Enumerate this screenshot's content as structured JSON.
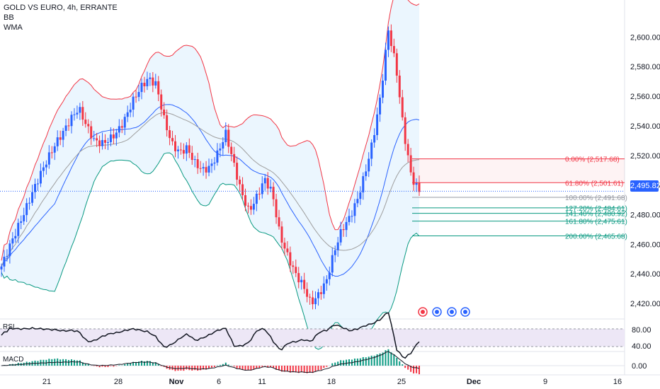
{
  "legend": {
    "title": "GOLD VS EURO, 4h, ERRANTE",
    "indicator1": "BB",
    "indicator2": "WMA"
  },
  "price_tag": "2,495.82",
  "panes": {
    "rsi": "RSI",
    "macd": "MACD"
  },
  "colors": {
    "up": "#2962ff",
    "down": "#f23645",
    "bb_upper": "#f23645",
    "bb_basis": "#2962ff",
    "bb_lower": "#089981",
    "bb_fill": "#e3f2fd",
    "wma": "#9e9e9e",
    "fib_high": "#f23645",
    "fib_mid": "#9598a1",
    "fib_ext": "#089981",
    "rsi_band": "#ede7f6"
  },
  "chart_data": {
    "type": "candlestick",
    "title": "GOLD VS EURO, 4h, ERRANTE",
    "ylim": [
      2410,
      2625
    ],
    "y_ticks": [
      "2,420.00",
      "2,440.00",
      "2,460.00",
      "2,480.00",
      "2,500.00",
      "2,520.00",
      "2,540.00",
      "2,560.00",
      "2,580.00",
      "2,600.00"
    ],
    "x_ticks": [
      "21",
      "28",
      "Nov",
      "6",
      "11",
      "18",
      "25",
      "Dec",
      "9",
      "16"
    ],
    "current_price": 2495.82,
    "fib_levels": [
      {
        "label": "0.00% (2,517.68)",
        "value": 2517.68,
        "group": "high"
      },
      {
        "label": "61.80% (2,501.61)",
        "value": 2501.61,
        "group": "high"
      },
      {
        "label": "100.00% (2,491.68)",
        "value": 2491.68,
        "group": "mid"
      },
      {
        "label": "127.20% (2,484.61)",
        "value": 2484.61,
        "group": "ext"
      },
      {
        "label": "141.40% (2,480.92)",
        "value": 2480.92,
        "group": "ext"
      },
      {
        "label": "161.80% (2,475.61)",
        "value": 2475.61,
        "group": "ext"
      },
      {
        "label": "200.00% (2,465.68)",
        "value": 2465.68,
        "group": "ext"
      }
    ],
    "price_path": [
      2445,
      2458,
      2470,
      2482,
      2495,
      2507,
      2518,
      2528,
      2536,
      2545,
      2552,
      2540,
      2530,
      2528,
      2531,
      2536,
      2545,
      2557,
      2566,
      2572,
      2568,
      2545,
      2528,
      2522,
      2525,
      2515,
      2510,
      2512,
      2522,
      2535,
      2515,
      2495,
      2482,
      2492,
      2504,
      2495,
      2466,
      2452,
      2440,
      2432,
      2420,
      2426,
      2435,
      2455,
      2470,
      2478,
      2490,
      2508,
      2530,
      2560,
      2605,
      2580,
      2536,
      2505,
      2496
    ],
    "rsi": {
      "ticks": [
        "80.00",
        "40.00"
      ]
    },
    "macd": {
      "ticks": [
        "0.00"
      ]
    },
    "overlay_icons": [
      "flash-icon",
      "event-icon",
      "event-icon",
      "event-icon"
    ]
  }
}
